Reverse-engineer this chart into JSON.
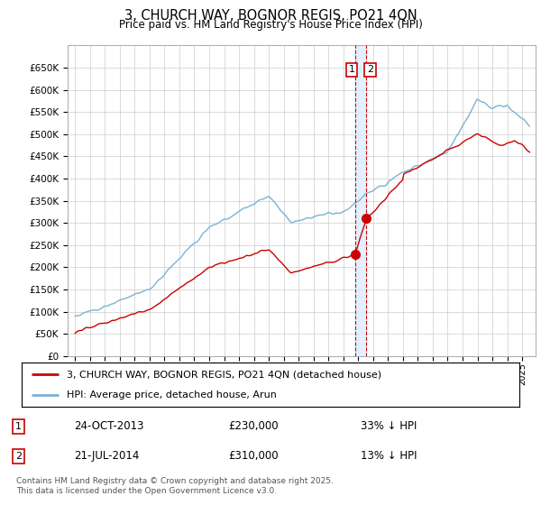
{
  "title": "3, CHURCH WAY, BOGNOR REGIS, PO21 4QN",
  "subtitle": "Price paid vs. HM Land Registry's House Price Index (HPI)",
  "legend_entry1": "3, CHURCH WAY, BOGNOR REGIS, PO21 4QN (detached house)",
  "legend_entry2": "HPI: Average price, detached house, Arun",
  "transaction1_date": "24-OCT-2013",
  "transaction1_price": "£230,000",
  "transaction1_hpi": "33% ↓ HPI",
  "transaction2_date": "21-JUL-2014",
  "transaction2_price": "£310,000",
  "transaction2_hpi": "13% ↓ HPI",
  "footer": "Contains HM Land Registry data © Crown copyright and database right 2025.\nThis data is licensed under the Open Government Licence v3.0.",
  "hpi_color": "#7ab3d4",
  "price_color": "#cc0000",
  "dashed_line_color": "#cc0000",
  "shaded_band_color": "#ddeeff",
  "background_color": "#ffffff",
  "grid_color": "#cccccc",
  "ylim": [
    0,
    700000
  ],
  "yticks": [
    0,
    50000,
    100000,
    150000,
    200000,
    250000,
    300000,
    350000,
    400000,
    450000,
    500000,
    550000,
    600000,
    650000
  ],
  "transaction1_x": 2013.81,
  "transaction2_x": 2014.54
}
